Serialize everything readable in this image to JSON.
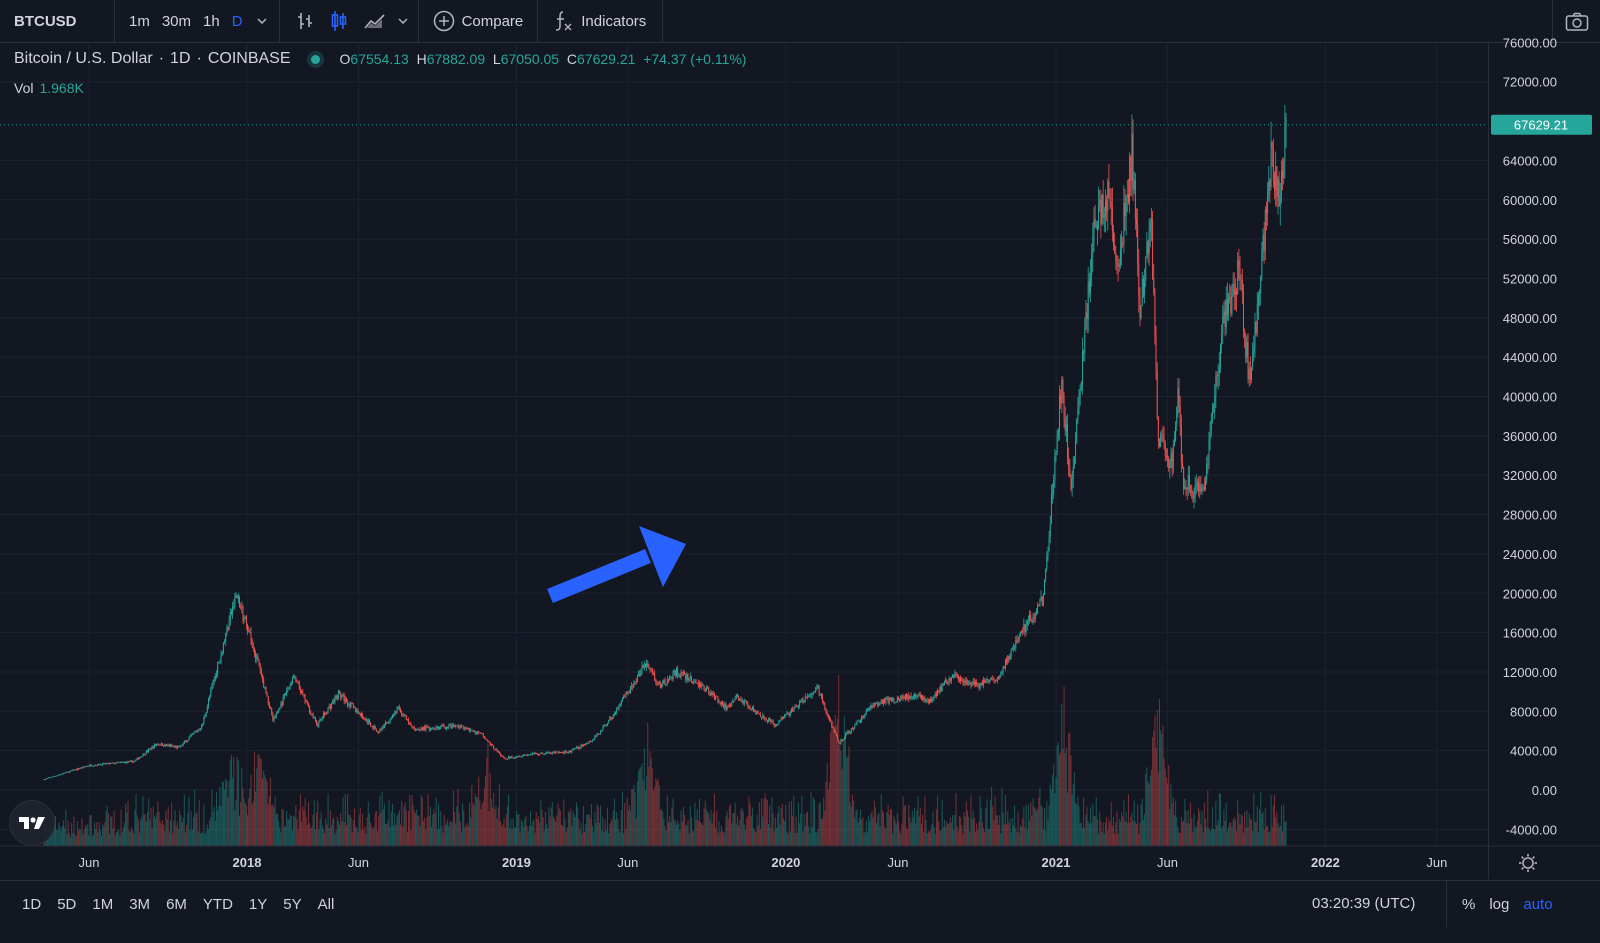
{
  "toolbar": {
    "symbol": "BTCUSD",
    "intervals": [
      "1m",
      "30m",
      "1h",
      "D"
    ],
    "active_interval": "D",
    "compare_label": "Compare",
    "indicators_label": "Indicators"
  },
  "legend": {
    "title": "Bitcoin / U.S. Dollar",
    "interval": "1D",
    "exchange": "COINBASE",
    "o_key": "O",
    "o": "67554.13",
    "h_key": "H",
    "h": "67882.09",
    "l_key": "L",
    "l": "67050.05",
    "c_key": "C",
    "c": "67629.21",
    "change": "+74.37 (+0.11%)",
    "vol_label": "Vol",
    "vol_value": "1.968K"
  },
  "colors": {
    "background": "#131722",
    "up": "#26a69a",
    "down": "#ef5350",
    "accent": "#2962ff",
    "annotation_arrow": "#2962ff"
  },
  "price_tag": "67629.21",
  "chart_data": {
    "type": "candlestick",
    "symbol": "BTCUSD",
    "y_ticks": [
      "76000.00",
      "72000.00",
      "64000.00",
      "60000.00",
      "56000.00",
      "52000.00",
      "48000.00",
      "44000.00",
      "40000.00",
      "36000.00",
      "32000.00",
      "28000.00",
      "24000.00",
      "20000.00",
      "16000.00",
      "12000.00",
      "8000.00",
      "4000.00",
      "0.00",
      "-4000.00"
    ],
    "x_ticks": [
      "Jun",
      "2018",
      "Jun",
      "2019",
      "Jun",
      "2020",
      "Jun",
      "2021",
      "Jun",
      "2022",
      "Jun"
    ],
    "ylim": [
      -4000,
      76000
    ],
    "last_price": 67629.21,
    "grid": true,
    "price_path": [
      {
        "date": "2017-04-01",
        "price": 1080
      },
      {
        "date": "2017-06-01",
        "price": 2500
      },
      {
        "date": "2017-08-01",
        "price": 2900
      },
      {
        "date": "2017-09-01",
        "price": 4700
      },
      {
        "date": "2017-10-01",
        "price": 4300
      },
      {
        "date": "2017-11-01",
        "price": 6500
      },
      {
        "date": "2017-12-17",
        "price": 19800
      },
      {
        "date": "2018-01-10",
        "price": 14500
      },
      {
        "date": "2018-02-06",
        "price": 7000
      },
      {
        "date": "2018-03-05",
        "price": 11500
      },
      {
        "date": "2018-04-06",
        "price": 6600
      },
      {
        "date": "2018-05-05",
        "price": 9800
      },
      {
        "date": "2018-06-28",
        "price": 5900
      },
      {
        "date": "2018-07-25",
        "price": 8300
      },
      {
        "date": "2018-08-14",
        "price": 6200
      },
      {
        "date": "2018-10-15",
        "price": 6500
      },
      {
        "date": "2018-11-15",
        "price": 5600
      },
      {
        "date": "2018-12-15",
        "price": 3200
      },
      {
        "date": "2019-01-15",
        "price": 3600
      },
      {
        "date": "2019-03-15",
        "price": 3900
      },
      {
        "date": "2019-04-15",
        "price": 5100
      },
      {
        "date": "2019-05-15",
        "price": 7900
      },
      {
        "date": "2019-06-26",
        "price": 13000
      },
      {
        "date": "2019-07-15",
        "price": 10500
      },
      {
        "date": "2019-08-06",
        "price": 12000
      },
      {
        "date": "2019-09-15",
        "price": 10300
      },
      {
        "date": "2019-10-15",
        "price": 8200
      },
      {
        "date": "2019-10-26",
        "price": 9500
      },
      {
        "date": "2019-12-17",
        "price": 6600
      },
      {
        "date": "2020-02-13",
        "price": 10300
      },
      {
        "date": "2020-03-13",
        "price": 4800
      },
      {
        "date": "2020-04-30",
        "price": 8800
      },
      {
        "date": "2020-06-15",
        "price": 9500
      },
      {
        "date": "2020-07-15",
        "price": 9200
      },
      {
        "date": "2020-08-15",
        "price": 11800
      },
      {
        "date": "2020-09-15",
        "price": 10600
      },
      {
        "date": "2020-10-15",
        "price": 11400
      },
      {
        "date": "2020-11-15",
        "price": 16000
      },
      {
        "date": "2020-12-15",
        "price": 19500
      },
      {
        "date": "2021-01-08",
        "price": 41000
      },
      {
        "date": "2021-01-22",
        "price": 31000
      },
      {
        "date": "2021-02-21",
        "price": 57000
      },
      {
        "date": "2021-03-13",
        "price": 61000
      },
      {
        "date": "2021-03-25",
        "price": 52000
      },
      {
        "date": "2021-04-14",
        "price": 64800
      },
      {
        "date": "2021-04-25",
        "price": 49000
      },
      {
        "date": "2021-05-10",
        "price": 58000
      },
      {
        "date": "2021-05-19",
        "price": 36000
      },
      {
        "date": "2021-06-08",
        "price": 33000
      },
      {
        "date": "2021-06-15",
        "price": 40000
      },
      {
        "date": "2021-06-22",
        "price": 31500
      },
      {
        "date": "2021-07-20",
        "price": 29800
      },
      {
        "date": "2021-08-14",
        "price": 47000
      },
      {
        "date": "2021-09-06",
        "price": 52500
      },
      {
        "date": "2021-09-21",
        "price": 41000
      },
      {
        "date": "2021-10-20",
        "price": 65000
      },
      {
        "date": "2021-10-28",
        "price": 60000
      },
      {
        "date": "2021-11-09",
        "price": 67600
      }
    ],
    "volume_spikes": [
      {
        "date": "2017-12-10",
        "relative": 1.0
      },
      {
        "date": "2018-01-17",
        "relative": 0.9
      },
      {
        "date": "2018-11-20",
        "relative": 0.7
      },
      {
        "date": "2019-06-27",
        "relative": 1.0
      },
      {
        "date": "2020-03-12",
        "relative": 1.8
      },
      {
        "date": "2021-01-11",
        "relative": 1.5
      },
      {
        "date": "2021-05-19",
        "relative": 1.5
      }
    ]
  },
  "bottombar": {
    "ranges": [
      "1D",
      "5D",
      "1M",
      "3M",
      "6M",
      "YTD",
      "1Y",
      "5Y",
      "All"
    ],
    "time": "03:20:39 (UTC)",
    "axis_opts": [
      "%",
      "log",
      "auto"
    ],
    "active_axis_opt": "auto"
  }
}
